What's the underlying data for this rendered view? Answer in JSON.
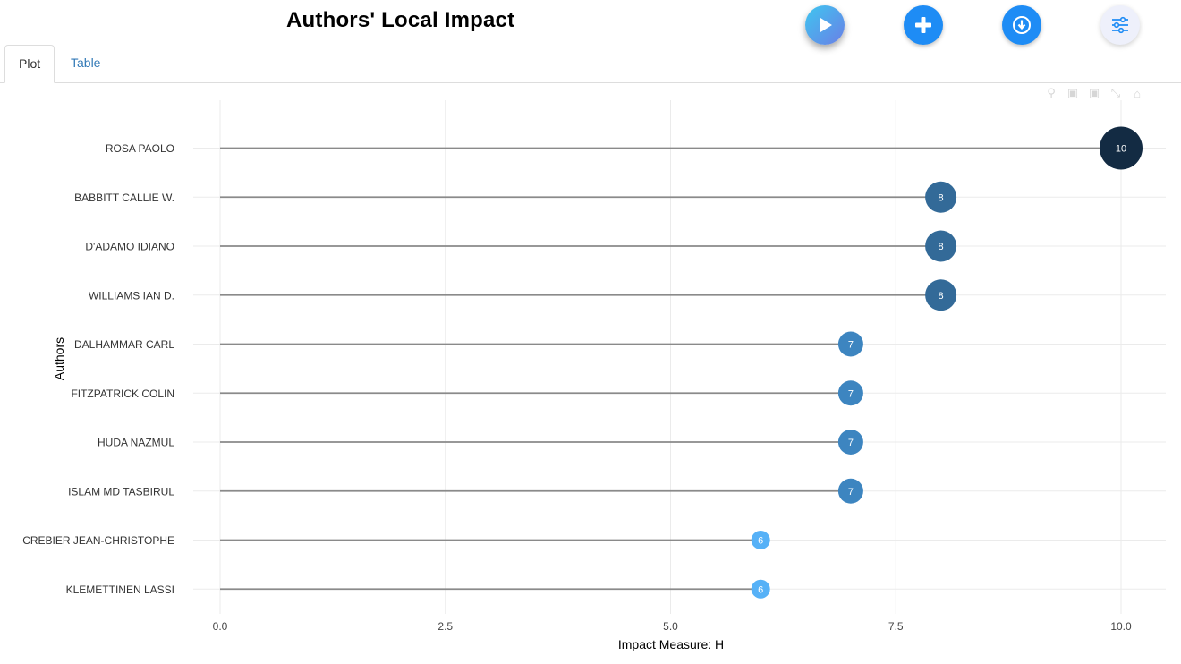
{
  "header": {
    "title": "Authors' Local Impact"
  },
  "tabs": [
    {
      "label": "Plot",
      "active": true
    },
    {
      "label": "Table",
      "active": false
    }
  ],
  "buttons": {
    "play_icon": "play-icon",
    "add_icon": "plus-icon",
    "download_icon": "download-icon",
    "settings_icon": "sliders-icon"
  },
  "modebar": {
    "icons": [
      "zoom-icon",
      "zoom-in-icon",
      "zoom-out-icon",
      "autoscale-icon",
      "home-icon"
    ]
  },
  "colors": {
    "accent": "#1e8cf5",
    "tab_link": "#337ab7",
    "stem": "#8a8a8a",
    "marker_low": "#56b1f7",
    "marker_mid": "#3d85c0",
    "marker_high": "#336a98",
    "marker_max": "#132b43"
  },
  "chart_data": {
    "type": "scatter",
    "subtype": "lollipop",
    "xlabel": "Impact Measure: H",
    "ylabel": "Authors",
    "xlim": [
      0,
      10.5
    ],
    "xticks": [
      0,
      2.5,
      5,
      7.5,
      10
    ],
    "xtick_labels": [
      "0.0",
      "2.5",
      "5.0",
      "7.5",
      "10.0"
    ],
    "grid": true,
    "legend": "none",
    "categories": [
      "ROSA PAOLO",
      "BABBITT CALLIE W.",
      "D'ADAMO IDIANO",
      "WILLIAMS IAN D.",
      "DALHAMMAR CARL",
      "FITZPATRICK COLIN",
      "HUDA NAZMUL",
      "ISLAM MD TASBIRUL",
      "CREBIER JEAN-CHRISTOPHE",
      "KLEMETTINEN LASSI"
    ],
    "values": [
      10,
      8,
      8,
      8,
      7,
      7,
      7,
      7,
      6,
      6
    ],
    "data_labels": [
      "10",
      "8",
      "8",
      "8",
      "7",
      "7",
      "7",
      "7",
      "6",
      "6"
    ]
  }
}
